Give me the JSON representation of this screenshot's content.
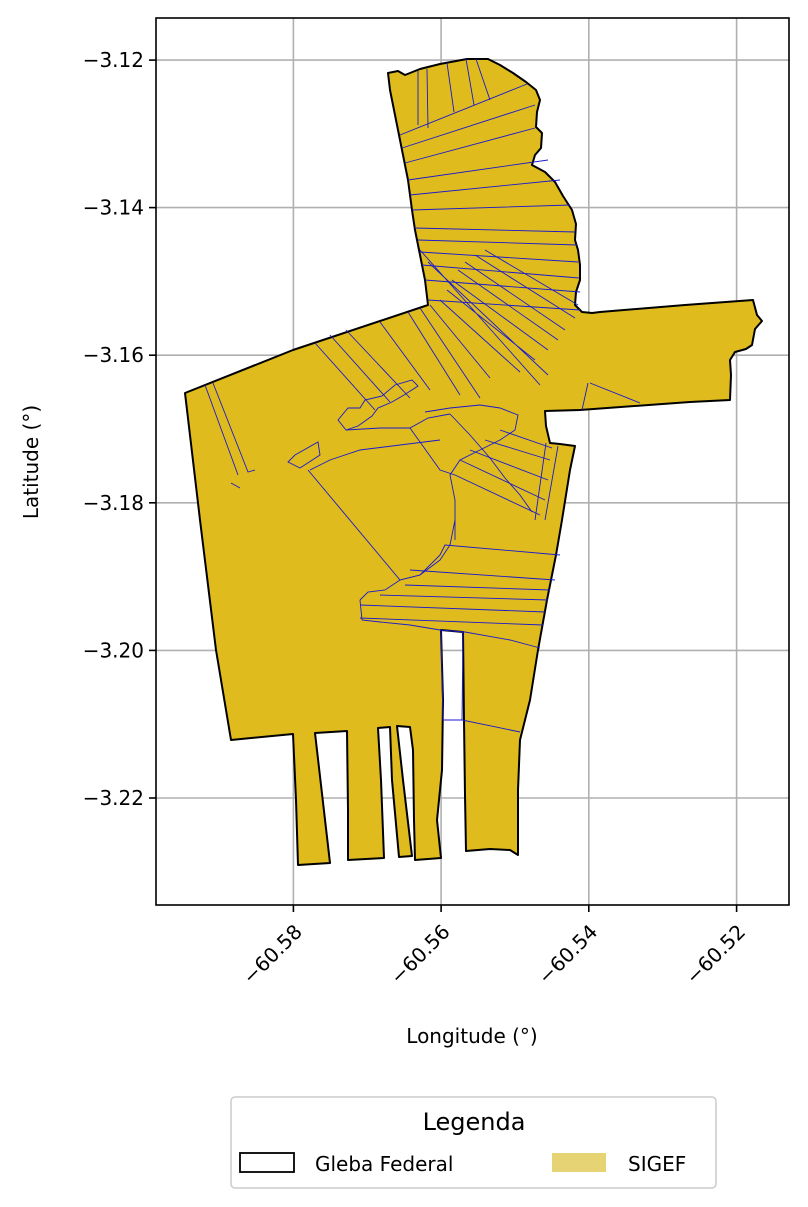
{
  "map": {
    "xlabel": "Longitude (°)",
    "ylabel": "Latitude (°)",
    "xlim": [
      -60.5986,
      -60.5129
    ],
    "ylim": [
      -3.2345,
      -3.1143
    ],
    "xticks": [
      -60.58,
      -60.56,
      -60.54,
      -60.52
    ],
    "yticks": [
      -3.12,
      -3.14,
      -3.16,
      -3.18,
      -3.2,
      -3.22
    ],
    "xtick_labels": [
      "−60.58",
      "−60.56",
      "−60.54",
      "−60.52"
    ],
    "ytick_labels": [
      "−3.12",
      "−3.14",
      "−3.16",
      "−3.18",
      "−3.20",
      "−3.22"
    ],
    "grid": true
  },
  "legend": {
    "title": "Legenda",
    "placement": "below plot, centered",
    "items": [
      {
        "label": "Gleba Federal",
        "style": "outline",
        "color": "#000000"
      },
      {
        "label": "SIGEF",
        "style": "fill",
        "color": "#e6d474"
      }
    ]
  },
  "colors": {
    "parcel_fill": "#dfbb1e",
    "parcel_outline": "#1a1acd",
    "gleba_outline": "#000000",
    "grid": "#b0b0b0"
  }
}
